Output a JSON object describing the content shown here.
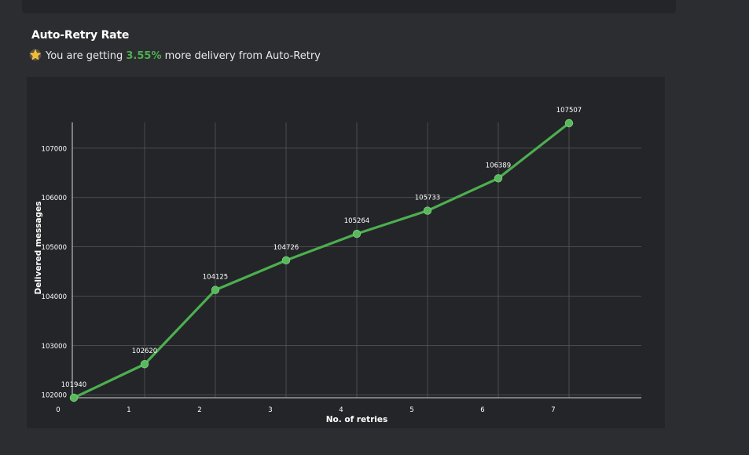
{
  "header": {
    "title": "Auto-Retry Rate",
    "subtitle_prefix": "You are getting",
    "subtitle_highlight": "3.55%",
    "subtitle_suffix": "more delivery from Auto-Retry",
    "star_icon": "star-icon",
    "highlight_color": "#4caf50"
  },
  "chart_data": {
    "type": "line",
    "x": [
      0,
      1,
      2,
      3,
      4,
      5,
      6,
      7
    ],
    "values": [
      101940,
      102620,
      104125,
      104726,
      105264,
      105733,
      106389,
      107507
    ],
    "data_labels": [
      "101940",
      "102620",
      "104125",
      "104726",
      "105264",
      "105733",
      "106389",
      "107507"
    ],
    "xlabel": "No. of retries",
    "ylabel": "Delivered messages",
    "x_ticks": [
      "0",
      "1",
      "2",
      "3",
      "4",
      "5",
      "6",
      "7"
    ],
    "y_ticks": [
      "102000",
      "103000",
      "104000",
      "105000",
      "106000",
      "107000"
    ],
    "ylim": [
      101940,
      107507
    ],
    "grid": true,
    "legend": "none",
    "line_color": "#4caf50"
  }
}
